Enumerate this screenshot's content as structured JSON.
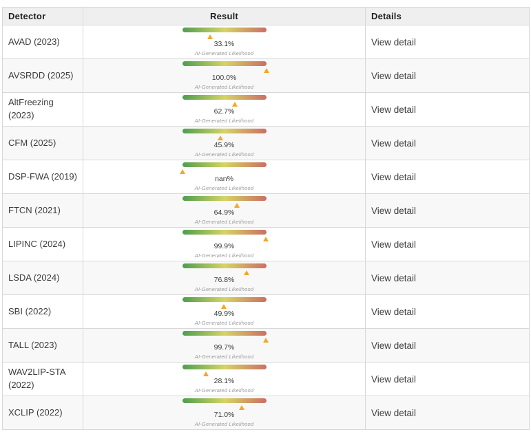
{
  "table": {
    "columns": [
      "Detector",
      "Result",
      "Details"
    ],
    "likelihood_label": "AI-Generated Likelihood",
    "view_detail_label": "View detail",
    "rows": [
      {
        "detector": "AVAD (2023)",
        "value": "33.1%",
        "percent": 33.1
      },
      {
        "detector": "AVSRDD (2025)",
        "value": "100.0%",
        "percent": 100.0
      },
      {
        "detector": "AltFreezing (2023)",
        "value": "62.7%",
        "percent": 62.7
      },
      {
        "detector": "CFM (2025)",
        "value": "45.9%",
        "percent": 45.9
      },
      {
        "detector": "DSP-FWA (2019)",
        "value": "nan%",
        "percent": 0
      },
      {
        "detector": "FTCN (2021)",
        "value": "64.9%",
        "percent": 64.9
      },
      {
        "detector": "LIPINC (2024)",
        "value": "99.9%",
        "percent": 99.9
      },
      {
        "detector": "LSDA (2024)",
        "value": "76.8%",
        "percent": 76.8
      },
      {
        "detector": "SBI (2022)",
        "value": "49.9%",
        "percent": 49.9
      },
      {
        "detector": "TALL (2023)",
        "value": "99.7%",
        "percent": 99.7
      },
      {
        "detector": "WAV2LIP-STA (2022)",
        "value": "28.1%",
        "percent": 28.1
      },
      {
        "detector": "XCLIP (2022)",
        "value": "71.0%",
        "percent": 71.0
      }
    ],
    "colors": {
      "gradient_start": "#4d9e4f",
      "gradient_mid": "#d6d464",
      "gradient_end": "#ca6f64",
      "marker": "#f5a623",
      "header_bg": "#efefef",
      "row_alt_bg": "#f8f8f8",
      "border": "#d8d8d8"
    }
  }
}
